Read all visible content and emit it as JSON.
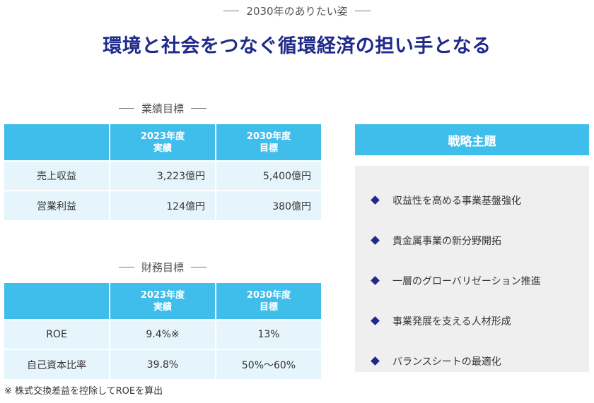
{
  "page": {
    "subheading": "2030年のありたい姿",
    "headline": "環境と社会をつなぐ循環経済の担い手となる"
  },
  "performance": {
    "section_label": "業績目標",
    "col_2023_line1": "2023年度",
    "col_2023_line2": "実績",
    "col_2030_line1": "2030年度",
    "col_2030_line2": "目標",
    "rows": [
      {
        "label": "売上収益",
        "actual_2023": "3,223億円",
        "target_2030": "5,400億円"
      },
      {
        "label": "営業利益",
        "actual_2023": "124億円",
        "target_2030": "380億円"
      }
    ]
  },
  "financial": {
    "section_label": "財務目標",
    "col_2023_line1": "2023年度",
    "col_2023_line2": "実績",
    "col_2030_line1": "2030年度",
    "col_2030_line2": "目標",
    "rows": [
      {
        "label": "ROE",
        "actual_2023": "9.4%※",
        "target_2030": "13%"
      },
      {
        "label": "自己資本比率",
        "actual_2023": "39.8%",
        "target_2030": "50%～60%"
      }
    ],
    "footnote": "※ 株式交換差益を控除してROEを算出"
  },
  "strategy": {
    "title": "戦略主題",
    "items": [
      "収益性を高める事業基盤強化",
      "貴金属事業の新分野開拓",
      "一層のグローバリゼーション推進",
      "事業発展を支える人材形成",
      "バランスシートの最適化"
    ]
  },
  "colors": {
    "accent_blue": "#3fbdeb",
    "navy": "#1f2a8a",
    "cell_bg": "#e6f5fc",
    "panel_bg": "#efefef"
  }
}
